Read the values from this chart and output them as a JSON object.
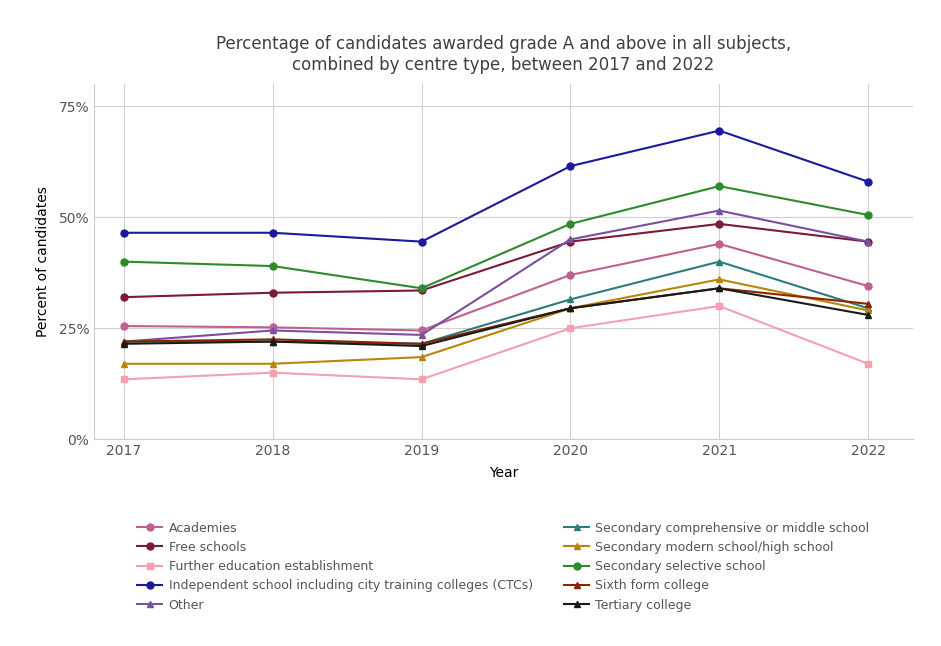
{
  "title": "Percentage of candidates awarded grade A and above in all subjects,\ncombined by centre type, between 2017 and 2022",
  "xlabel": "Year",
  "ylabel": "Percent of candidates",
  "years": [
    2017,
    2018,
    2019,
    2020,
    2021,
    2022
  ],
  "series": [
    {
      "name": "Academies",
      "values": [
        25.5,
        25.2,
        24.5,
        37.0,
        44.0,
        34.5
      ],
      "color": "#c06090",
      "marker": "o",
      "legend_col": 0
    },
    {
      "name": "Free schools",
      "values": [
        32.0,
        33.0,
        33.5,
        44.5,
        48.5,
        44.5
      ],
      "color": "#7b1a3a",
      "marker": "o",
      "legend_col": 1
    },
    {
      "name": "Further education establishment",
      "values": [
        13.5,
        15.0,
        13.5,
        25.0,
        30.0,
        17.0
      ],
      "color": "#f4a0b0",
      "marker": "s",
      "legend_col": 0
    },
    {
      "name": "Independent school including city training colleges (CTCs)",
      "values": [
        46.5,
        46.5,
        44.5,
        61.5,
        69.5,
        58.0
      ],
      "color": "#1a1a9a",
      "marker": "o",
      "legend_col": 1
    },
    {
      "name": "Other",
      "values": [
        22.0,
        24.5,
        23.5,
        45.0,
        51.5,
        44.5
      ],
      "color": "#7b4ea0",
      "marker": "^",
      "legend_col": 0
    },
    {
      "name": "Secondary comprehensive or middle school",
      "values": [
        22.0,
        22.0,
        21.5,
        31.5,
        40.0,
        29.5
      ],
      "color": "#2e7b7b",
      "marker": "^",
      "legend_col": 1
    },
    {
      "name": "Secondary modern school/high school",
      "values": [
        17.0,
        17.0,
        18.5,
        29.5,
        36.0,
        29.0
      ],
      "color": "#b8860b",
      "marker": "^",
      "legend_col": 0
    },
    {
      "name": "Secondary selective school",
      "values": [
        40.0,
        39.0,
        34.0,
        48.5,
        57.0,
        50.5
      ],
      "color": "#2d8a2d",
      "marker": "o",
      "legend_col": 1
    },
    {
      "name": "Sixth form college",
      "values": [
        22.0,
        22.5,
        21.5,
        29.5,
        34.0,
        30.5
      ],
      "color": "#8b2500",
      "marker": "^",
      "legend_col": 0
    },
    {
      "name": "Tertiary college",
      "values": [
        21.5,
        22.0,
        21.0,
        29.5,
        34.0,
        28.0
      ],
      "color": "#1a1a1a",
      "marker": "^",
      "legend_col": 1
    }
  ],
  "yticks": [
    0,
    25,
    50,
    75
  ],
  "ytick_labels": [
    "0%",
    "25%",
    "50%",
    "75%"
  ],
  "ylim": [
    0,
    80
  ],
  "xlim": [
    2016.8,
    2022.3
  ],
  "background_color": "#ffffff",
  "grid_color": "#d0d0d0",
  "title_color": "#404040",
  "legend_fontsize": 9,
  "axis_fontsize": 10,
  "title_fontsize": 12
}
